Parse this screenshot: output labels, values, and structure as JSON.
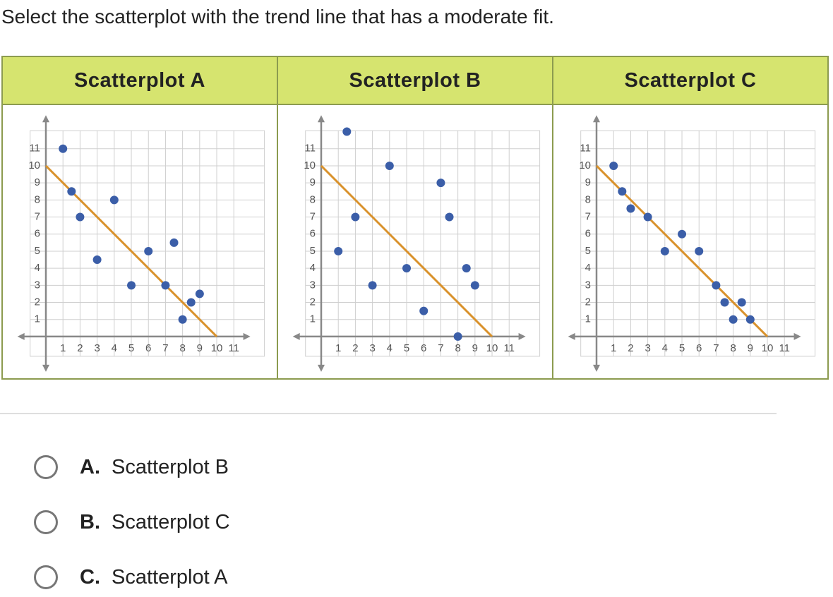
{
  "question": "Select the scatterplot with the trend line that has a moderate fit.",
  "point_color": "#3b5ea8",
  "trend_color": "#d9922c",
  "plots": [
    {
      "title": "Scatterplot A",
      "x": [
        1,
        1.5,
        2,
        3,
        4,
        5,
        6,
        7,
        7.5,
        8,
        8.5,
        9
      ],
      "y": [
        11,
        8.5,
        7,
        4.5,
        8,
        3,
        5,
        3,
        5.5,
        1,
        2,
        2.5
      ],
      "trend_line": {
        "x": [
          0,
          10
        ],
        "y": [
          10,
          0
        ]
      },
      "xlim": [
        -1.5,
        11.8
      ],
      "ylim": [
        -1.9,
        12.8
      ],
      "xticks": [
        1,
        2,
        3,
        4,
        5,
        6,
        7,
        8,
        9,
        10,
        11
      ],
      "yticks": [
        1,
        2,
        3,
        4,
        5,
        6,
        7,
        8,
        9,
        10,
        11
      ]
    },
    {
      "title": "Scatterplot B",
      "x": [
        1.5,
        1,
        2,
        3,
        4,
        5,
        6,
        7,
        7.5,
        8,
        8.5,
        9
      ],
      "y": [
        12,
        5,
        7,
        3,
        10,
        4,
        1.5,
        9,
        7,
        0,
        4,
        3
      ],
      "trend_line": {
        "x": [
          0,
          10
        ],
        "y": [
          10,
          0
        ]
      },
      "xlim": [
        -1.5,
        11.8
      ],
      "ylim": [
        -1.9,
        12.8
      ],
      "xticks": [
        1,
        2,
        3,
        4,
        5,
        6,
        7,
        8,
        9,
        10,
        11
      ],
      "yticks": [
        1,
        2,
        3,
        4,
        5,
        6,
        7,
        8,
        9,
        10,
        11
      ]
    },
    {
      "title": "Scatterplot C",
      "x": [
        1,
        1.5,
        2,
        3,
        4,
        5,
        6,
        7,
        7.5,
        8,
        8.5,
        9
      ],
      "y": [
        10,
        8.5,
        7.5,
        7,
        5,
        6,
        5,
        3,
        2,
        1,
        2,
        1
      ],
      "trend_line": {
        "x": [
          0,
          10
        ],
        "y": [
          10,
          0
        ]
      },
      "xlim": [
        -1.5,
        11.8
      ],
      "ylim": [
        -1.9,
        12.8
      ],
      "xticks": [
        1,
        2,
        3,
        4,
        5,
        6,
        7,
        8,
        9,
        10,
        11
      ],
      "yticks": [
        1,
        2,
        3,
        4,
        5,
        6,
        7,
        8,
        9,
        10,
        11
      ]
    }
  ],
  "options": [
    {
      "letter": "A.",
      "text": "Scatterplot B"
    },
    {
      "letter": "B.",
      "text": "Scatterplot C"
    },
    {
      "letter": "C.",
      "text": "Scatterplot A"
    }
  ]
}
